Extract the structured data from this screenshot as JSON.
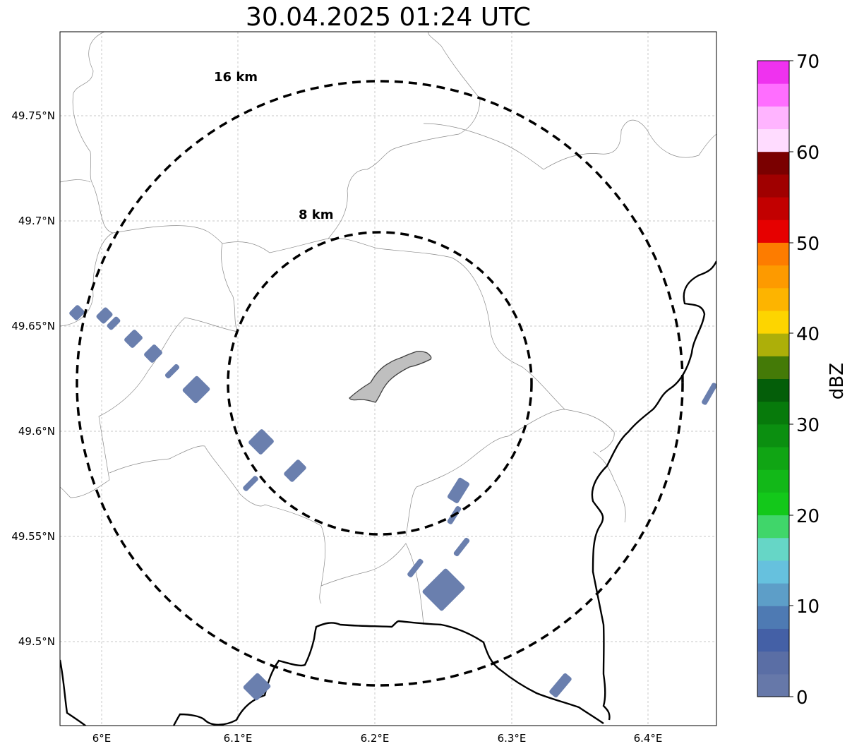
{
  "map": {
    "title": "30.04.2025 01:24 UTC",
    "lon_ticks": [
      "6°E",
      "6.1°E",
      "6.2°E",
      "6.3°E",
      "6.4°E"
    ],
    "lat_ticks": [
      "49.75°N",
      "49.7°N",
      "49.65°N",
      "49.6°N",
      "49.55°N",
      "49.5°N"
    ],
    "range_rings": [
      {
        "label": "8 km",
        "radius_km": 8
      },
      {
        "label": "16 km",
        "radius_km": 16
      }
    ],
    "extent": {
      "lon_min": 5.97,
      "lon_max": 6.45,
      "lat_min": 49.46,
      "lat_max": 49.79
    },
    "center": {
      "lon": 6.203,
      "lat": 49.623
    },
    "echo_color": "#6a7fae",
    "city_fill": "#bfbfbf"
  },
  "colorbar": {
    "unit": "dBZ",
    "ticks": [
      "0",
      "10",
      "20",
      "30",
      "40",
      "50",
      "60",
      "70"
    ],
    "colors": [
      "#6678a9",
      "#5a6ea5",
      "#4460a6",
      "#4e7ab3",
      "#5d9ec8",
      "#66c1de",
      "#66d6c6",
      "#40d66a",
      "#13c81a",
      "#12b818",
      "#10a514",
      "#0b8f10",
      "#077a0b",
      "#045e09",
      "#447a07",
      "#adaf09",
      "#fdd500",
      "#fdb400",
      "#fd9a00",
      "#fd7c00",
      "#e60000",
      "#c20000",
      "#a00000",
      "#7a0000",
      "#ffdcff",
      "#ffb4ff",
      "#ff6eff",
      "#ef32ef"
    ]
  }
}
